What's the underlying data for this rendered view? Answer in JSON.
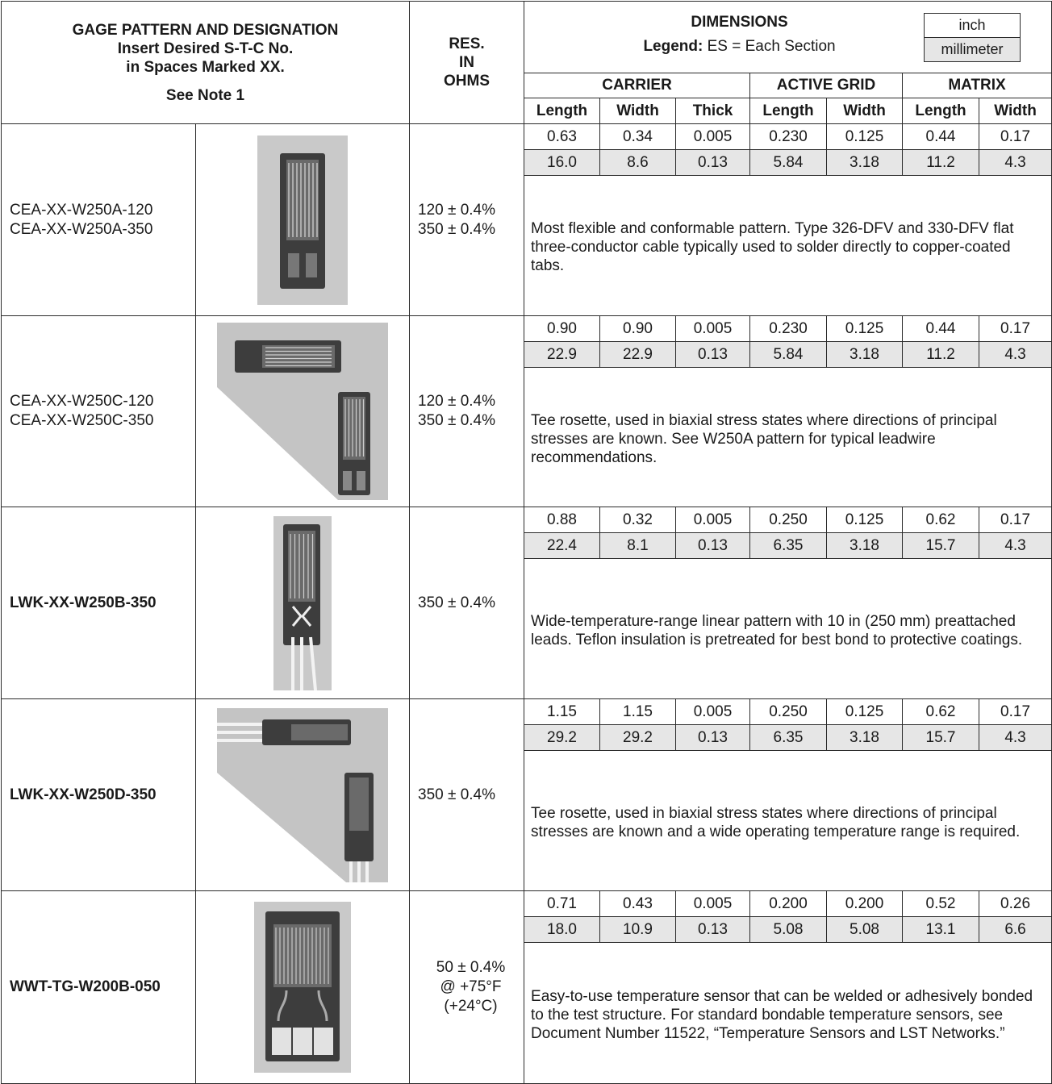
{
  "header": {
    "pattern_title": "GAGE PATTERN AND DESIGNATION",
    "pattern_line2": "Insert Desired S-T-C No.",
    "pattern_line3": "in Spaces Marked XX.",
    "pattern_note": "See Note 1",
    "res_line1": "RES.",
    "res_line2": "IN",
    "res_line3": "OHMS",
    "dimensions": "DIMENSIONS",
    "legend_label": "Legend:",
    "legend_text": "ES = Each Section",
    "unit_inch": "inch",
    "unit_mm": "millimeter",
    "groups": [
      "CARRIER",
      "ACTIVE GRID",
      "MATRIX"
    ],
    "columns": [
      "Length",
      "Width",
      "Thick",
      "Length",
      "Width",
      "Length",
      "Width"
    ]
  },
  "rows": [
    {
      "names": [
        "CEA-XX-W250A-120",
        "CEA-XX-W250A-350"
      ],
      "bold": false,
      "res": [
        "120 ± 0.4%",
        "350 ± 0.4%"
      ],
      "inch": [
        "0.63",
        "0.34",
        "0.005",
        "0.230",
        "0.125",
        "0.44",
        "0.17"
      ],
      "mm": [
        "16.0",
        "8.6",
        "0.13",
        "5.84",
        "3.18",
        "11.2",
        "4.3"
      ],
      "desc": "Most flexible and conformable pattern. Type 326-DFV and 330-DFV flat three-conductor cable typically used to solder directly to copper-coated tabs.",
      "icon": "linear-gage-icon"
    },
    {
      "names": [
        "CEA-XX-W250C-120",
        "CEA-XX-W250C-350"
      ],
      "bold": false,
      "res": [
        "120 ± 0.4%",
        "350 ± 0.4%"
      ],
      "inch": [
        "0.90",
        "0.90",
        "0.005",
        "0.230",
        "0.125",
        "0.44",
        "0.17"
      ],
      "mm": [
        "22.9",
        "22.9",
        "0.13",
        "5.84",
        "3.18",
        "11.2",
        "4.3"
      ],
      "desc": "Tee rosette, used in biaxial stress states where directions of principal stresses are known. See W250A pattern for typical leadwire recommendations.",
      "icon": "tee-rosette-icon"
    },
    {
      "names": [
        "LWK-XX-W250B-350"
      ],
      "bold": true,
      "res": [
        "350 ± 0.4%"
      ],
      "inch": [
        "0.88",
        "0.32",
        "0.005",
        "0.250",
        "0.125",
        "0.62",
        "0.17"
      ],
      "mm": [
        "22.4",
        "8.1",
        "0.13",
        "6.35",
        "3.18",
        "15.7",
        "4.3"
      ],
      "desc": "Wide-temperature-range linear pattern with 10 in (250 mm) preattached leads. Teflon insulation is pretreated for best bond to protective coatings.",
      "icon": "linear-gage-leads-icon"
    },
    {
      "names": [
        "LWK-XX-W250D-350"
      ],
      "bold": true,
      "res": [
        "350 ± 0.4%"
      ],
      "inch": [
        "1.15",
        "1.15",
        "0.005",
        "0.250",
        "0.125",
        "0.62",
        "0.17"
      ],
      "mm": [
        "29.2",
        "29.2",
        "0.13",
        "6.35",
        "3.18",
        "15.7",
        "4.3"
      ],
      "desc": "Tee rosette, used in biaxial stress states where directions of principal stresses are known and a wide operating temperature range is required.",
      "icon": "tee-rosette-leads-icon"
    },
    {
      "names": [
        "WWT-TG-W200B-050"
      ],
      "bold": true,
      "res": [
        "50 ± 0.4%",
        "@ +75°F",
        "(+24°C)"
      ],
      "inch": [
        "0.71",
        "0.43",
        "0.005",
        "0.200",
        "0.200",
        "0.52",
        "0.26"
      ],
      "mm": [
        "18.0",
        "10.9",
        "0.13",
        "5.08",
        "5.08",
        "13.1",
        "6.6"
      ],
      "desc": "Easy-to-use temperature sensor that can be welded or adhesively bonded to the test structure. For standard bondable temperature sensors, see Document Number 11522, “Temperature Sensors and LST Networks.”",
      "icon": "temperature-sensor-icon"
    }
  ]
}
